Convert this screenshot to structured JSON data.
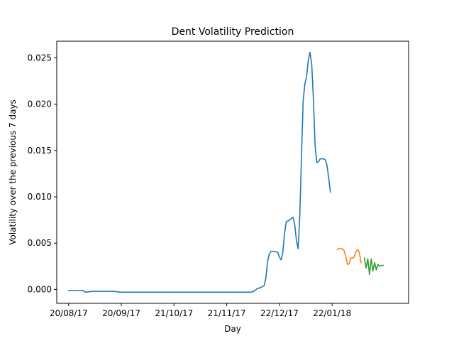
{
  "chart_data": {
    "type": "line",
    "title": "Dent Volatility Prediction",
    "xlabel": "Day",
    "ylabel": "Volatility over the previous 7 days",
    "x_is_date": true,
    "xlim": [
      "2017-08-13",
      "2018-03-08"
    ],
    "ylim": [
      -0.0015,
      0.0268
    ],
    "x_ticks": [
      {
        "date": "2017-08-20",
        "label": "20/08/17"
      },
      {
        "date": "2017-09-20",
        "label": "20/09/17"
      },
      {
        "date": "2017-10-21",
        "label": "21/10/17"
      },
      {
        "date": "2017-11-21",
        "label": "21/11/17"
      },
      {
        "date": "2017-12-22",
        "label": "22/12/17"
      },
      {
        "date": "2018-01-22",
        "label": "22/01/18"
      }
    ],
    "y_ticks": [
      {
        "value": 0.0,
        "label": "0.000"
      },
      {
        "value": 0.005,
        "label": "0.005"
      },
      {
        "value": 0.01,
        "label": "0.010"
      },
      {
        "value": 0.015,
        "label": "0.015"
      },
      {
        "value": 0.02,
        "label": "0.020"
      },
      {
        "value": 0.025,
        "label": "0.025"
      }
    ],
    "grid": false,
    "legend": false,
    "series": [
      {
        "color": "#1f77b4",
        "points": [
          [
            "2017-08-20",
            -0.0001
          ],
          [
            "2017-08-25",
            -0.0001
          ],
          [
            "2017-08-28",
            -0.0001
          ],
          [
            "2017-08-30",
            -0.0003
          ],
          [
            "2017-09-03",
            -0.0002
          ],
          [
            "2017-09-10",
            -0.0002
          ],
          [
            "2017-09-15",
            -0.0002
          ],
          [
            "2017-09-20",
            -0.0003
          ],
          [
            "2017-09-25",
            -0.0003
          ],
          [
            "2017-10-01",
            -0.0003
          ],
          [
            "2017-10-10",
            -0.0003
          ],
          [
            "2017-10-21",
            -0.0003
          ],
          [
            "2017-10-30",
            -0.0003
          ],
          [
            "2017-11-05",
            -0.0003
          ],
          [
            "2017-11-15",
            -0.0003
          ],
          [
            "2017-11-21",
            -0.0003
          ],
          [
            "2017-11-30",
            -0.0003
          ],
          [
            "2017-12-05",
            -0.0003
          ],
          [
            "2017-12-07",
            -0.0002
          ],
          [
            "2017-12-09",
            0.0001
          ],
          [
            "2017-12-11",
            0.0002
          ],
          [
            "2017-12-13",
            0.0004
          ],
          [
            "2017-12-14",
            0.0012
          ],
          [
            "2017-12-15",
            0.003
          ],
          [
            "2017-12-16",
            0.0038
          ],
          [
            "2017-12-17",
            0.0041
          ],
          [
            "2017-12-19",
            0.0041
          ],
          [
            "2017-12-21",
            0.004
          ],
          [
            "2017-12-22",
            0.0035
          ],
          [
            "2017-12-23",
            0.0032
          ],
          [
            "2017-12-24",
            0.004
          ],
          [
            "2017-12-25",
            0.006
          ],
          [
            "2017-12-26",
            0.0073
          ],
          [
            "2017-12-28",
            0.0075
          ],
          [
            "2017-12-30",
            0.0078
          ],
          [
            "2017-12-31",
            0.007
          ],
          [
            "2018-01-01",
            0.0053
          ],
          [
            "2018-01-02",
            0.0044
          ],
          [
            "2018-01-03",
            0.008
          ],
          [
            "2018-01-04",
            0.0145
          ],
          [
            "2018-01-05",
            0.0205
          ],
          [
            "2018-01-06",
            0.0222
          ],
          [
            "2018-01-07",
            0.023
          ],
          [
            "2018-01-08",
            0.0248
          ],
          [
            "2018-01-09",
            0.0256
          ],
          [
            "2018-01-10",
            0.0243
          ],
          [
            "2018-01-11",
            0.0205
          ],
          [
            "2018-01-12",
            0.0155
          ],
          [
            "2018-01-13",
            0.0137
          ],
          [
            "2018-01-14",
            0.0138
          ],
          [
            "2018-01-15",
            0.0141
          ],
          [
            "2018-01-17",
            0.0141
          ],
          [
            "2018-01-18",
            0.014
          ],
          [
            "2018-01-19",
            0.0134
          ],
          [
            "2018-01-20",
            0.012
          ],
          [
            "2018-01-21",
            0.0105
          ]
        ]
      },
      {
        "color": "#ff7f0e",
        "points": [
          [
            "2018-01-25",
            0.0043
          ],
          [
            "2018-01-26",
            0.0044
          ],
          [
            "2018-01-27",
            0.0044
          ],
          [
            "2018-01-28",
            0.0044
          ],
          [
            "2018-01-29",
            0.0042
          ],
          [
            "2018-01-30",
            0.0036
          ],
          [
            "2018-01-31",
            0.0027
          ],
          [
            "2018-02-01",
            0.0028
          ],
          [
            "2018-02-02",
            0.0034
          ],
          [
            "2018-02-03",
            0.0034
          ],
          [
            "2018-02-04",
            0.0035
          ],
          [
            "2018-02-05",
            0.0041
          ],
          [
            "2018-02-06",
            0.0043
          ],
          [
            "2018-02-07",
            0.004
          ],
          [
            "2018-02-08",
            0.0029
          ]
        ]
      },
      {
        "color": "#2ca02c",
        "points": [
          [
            "2018-02-10",
            0.0034
          ],
          [
            "2018-02-11",
            0.0023
          ],
          [
            "2018-02-12",
            0.0033
          ],
          [
            "2018-02-13",
            0.0016
          ],
          [
            "2018-02-14",
            0.0033
          ],
          [
            "2018-02-15",
            0.002
          ],
          [
            "2018-02-16",
            0.0029
          ],
          [
            "2018-02-17",
            0.0021
          ],
          [
            "2018-02-18",
            0.0027
          ],
          [
            "2018-02-19",
            0.0025
          ],
          [
            "2018-02-20",
            0.0026
          ],
          [
            "2018-02-21",
            0.0026
          ]
        ]
      }
    ]
  }
}
